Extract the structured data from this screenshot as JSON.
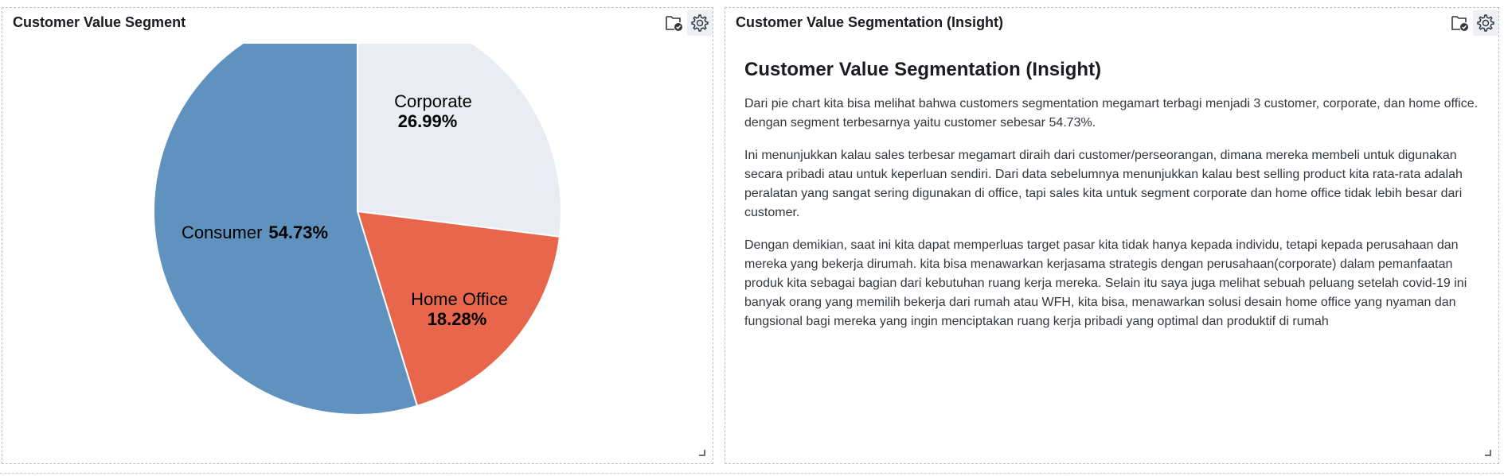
{
  "left_panel": {
    "title": "Customer Value Segment",
    "icons": [
      "folder-check-icon",
      "gear-icon"
    ]
  },
  "right_panel": {
    "title": "Customer Value Segmentation (Insight)",
    "icons": [
      "folder-check-icon",
      "gear-icon"
    ],
    "heading": "Customer Value Segmentation (Insight)",
    "paragraphs": [
      "Dari pie chart kita bisa melihat bahwa customers segmentation megamart terbagi menjadi 3 customer, corporate, dan home office. dengan segment terbesarnya yaitu customer sebesar 54.73%.",
      "Ini menunjukkan kalau sales terbesar megamart diraih dari customer/perseorangan, dimana mereka membeli untuk digunakan secara pribadi atau untuk keperluan sendiri. Dari data sebelumnya menunjukkan kalau best selling product kita rata-rata adalah peralatan yang sangat sering digunakan di office, tapi sales kita untuk segment corporate dan home office tidak lebih besar dari customer.",
      "Dengan demikian, saat ini kita dapat memperluas target pasar kita tidak hanya kepada individu, tetapi kepada perusahaan dan mereka yang bekerja dirumah. kita bisa menawarkan kerjasama strategis dengan perusahaan(corporate) dalam pemanfaatan produk kita sebagai bagian dari kebutuhan ruang kerja mereka. Selain itu saya juga melihat sebuah peluang setelah covid-19 ini banyak orang yang memilih bekerja dari rumah atau WFH, kita bisa, menawarkan solusi desain home office yang nyaman dan fungsional bagi mereka yang ingin menciptakan ruang kerja pribadi yang optimal dan produktif di rumah"
    ]
  },
  "chart_data": {
    "type": "pie",
    "title": "",
    "slices": [
      {
        "label": "Corporate",
        "pct_label": "26.99%",
        "value": 26.99,
        "color": "#e9ecf3"
      },
      {
        "label": "Home Office",
        "pct_label": "18.28%",
        "value": 18.28,
        "color": "#e7664c"
      },
      {
        "label": "Consumer",
        "pct_label": "54.73%",
        "value": 54.73,
        "color": "#6092c0"
      }
    ],
    "start": "12 o'clock, clockwise",
    "legend": "none"
  }
}
